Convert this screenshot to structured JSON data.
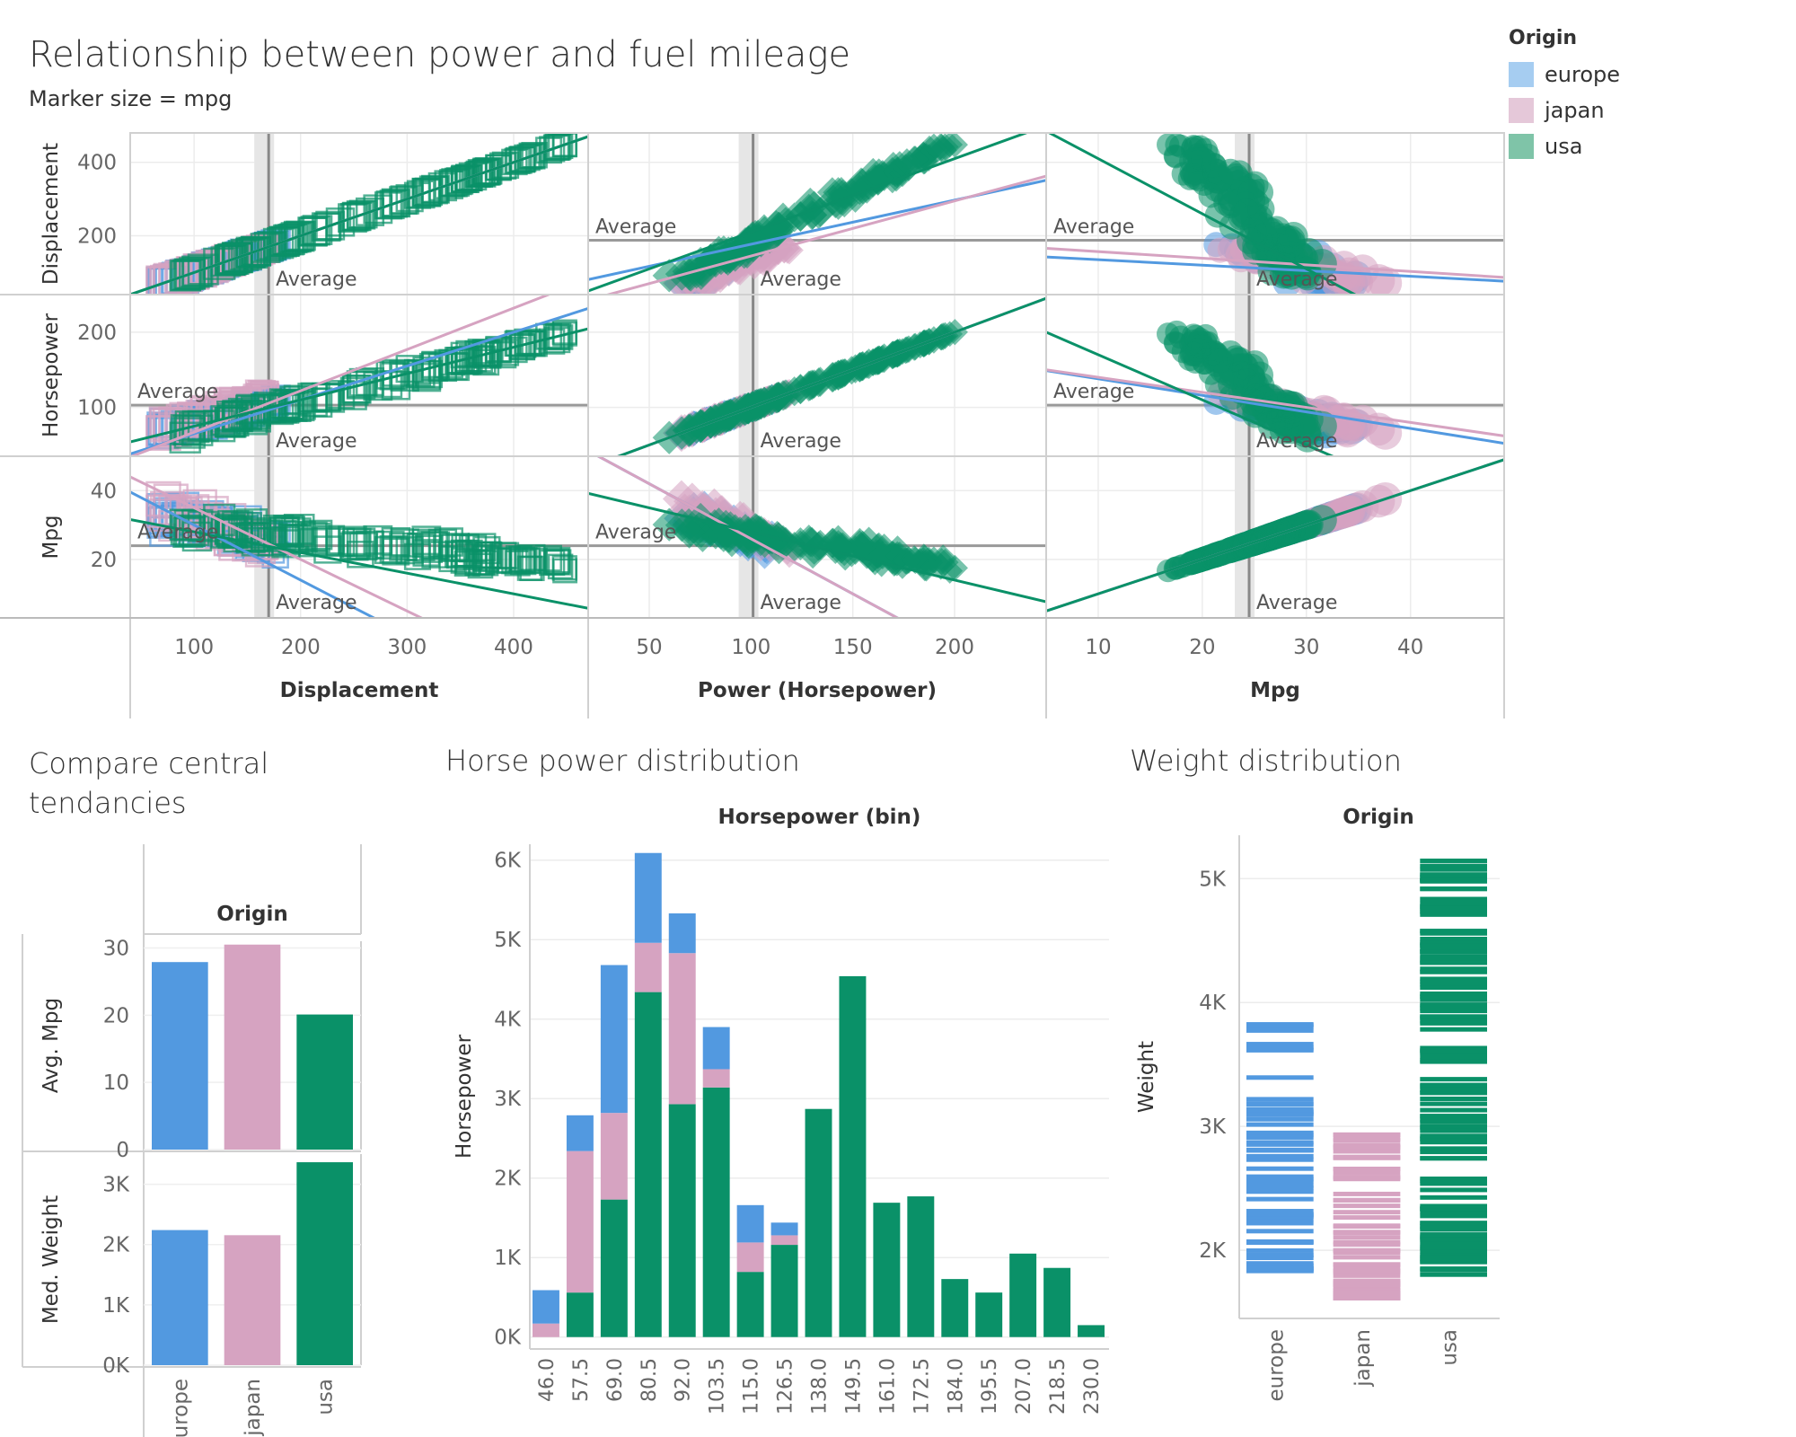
{
  "title": "Relationship between power and fuel mileage",
  "subtitle": "Marker size = mpg",
  "legend": {
    "title": "Origin",
    "items": [
      {
        "label": "europe",
        "color": "#a6cdf1"
      },
      {
        "label": "japan",
        "color": "#e5c8d9"
      },
      {
        "label": "usa",
        "color": "#7fc4a8"
      }
    ]
  },
  "colors": {
    "europe": "#5299e0",
    "japan": "#d6a3c1",
    "usa": "#0a9168"
  },
  "reference_line_label": "Average",
  "section_titles": {
    "central": "Compare central tendancies",
    "hp": "Horse power distribution",
    "weight": "Weight distribution"
  },
  "chart_data": [
    {
      "type": "scatter",
      "title": "Relationship between power and fuel mileage",
      "subtitle": "Marker size = mpg",
      "columns": [
        {
          "name": "Displacement",
          "domain": [
            40,
            470
          ],
          "ticks": [
            100,
            200,
            300,
            400
          ],
          "average": 170
        },
        {
          "name": "Power (Horsepower)",
          "domain": [
            20,
            245
          ],
          "ticks": [
            50,
            100,
            150,
            200
          ],
          "average": 101
        },
        {
          "name": "Mpg",
          "domain": [
            5,
            49
          ],
          "ticks": [
            10,
            20,
            30,
            40
          ],
          "average": 24.5
        }
      ],
      "rows": [
        {
          "name": "Displacement",
          "domain": [
            40,
            480
          ],
          "ticks": [
            200,
            400
          ],
          "average": 188
        },
        {
          "name": "Horsepower",
          "domain": [
            35,
            250
          ],
          "ticks": [
            100,
            200
          ],
          "average": 103
        },
        {
          "name": "Mpg",
          "domain": [
            3,
            50
          ],
          "ticks": [
            20,
            40
          ],
          "average": 24
        }
      ],
      "series": [
        "europe",
        "japan",
        "usa"
      ],
      "trend_lines": {
        "Displacement|Displacement": {
          "europe": [
            1,
            0
          ],
          "japan": [
            1,
            0
          ],
          "usa": [
            1,
            0
          ]
        },
        "Displacement|Power (Horsepower)": {
          "europe": [
            1.2,
            57
          ],
          "japan": [
            1.5,
            -5
          ],
          "usa": [
            2.0,
            10
          ]
        },
        "Displacement|Mpg": {
          "europe": [
            -1.5,
            150
          ],
          "japan": [
            -1.8,
            175
          ],
          "usa": [
            -15,
            560
          ]
        },
        "Horsepower|Displacement": {
          "europe": [
            0.45,
            20
          ],
          "japan": [
            0.55,
            12
          ],
          "usa": [
            0.35,
            40
          ]
        },
        "Horsepower|Power (Horsepower)": {
          "europe": [
            1,
            0
          ],
          "japan": [
            1,
            0
          ],
          "usa": [
            1,
            0
          ]
        },
        "Horsepower|Mpg": {
          "europe": [
            -2.2,
            160
          ],
          "japan": [
            -2.0,
            160
          ],
          "usa": [
            -6,
            230
          ]
        },
        "Mpg|Displacement": {
          "europe": [
            -0.16,
            46
          ],
          "japan": [
            -0.15,
            50
          ],
          "usa": [
            -0.06,
            34
          ]
        },
        "Mpg|Power (Horsepower)": {
          "europe": [
            -0.32,
            58
          ],
          "japan": [
            -0.32,
            58
          ],
          "usa": [
            -0.14,
            42
          ]
        },
        "Mpg|Mpg": {
          "europe": [
            1,
            0
          ],
          "japan": [
            1,
            0
          ],
          "usa": [
            1,
            0
          ]
        }
      }
    },
    {
      "type": "bar",
      "title": "Compare central tendancies",
      "column_header": "Origin",
      "categories": [
        "europe",
        "japan",
        "usa"
      ],
      "panels": [
        {
          "ylabel": "Avg. Mpg",
          "values": [
            27.9,
            30.5,
            20.1
          ],
          "ylim": [
            0,
            31
          ],
          "ticks": [
            0,
            10,
            20,
            30
          ],
          "tick_labels": [
            "0",
            "10",
            "20",
            "30"
          ]
        },
        {
          "ylabel": "Med. Weight",
          "values": [
            2240,
            2155,
            3365
          ],
          "ylim": [
            0,
            3500
          ],
          "ticks": [
            0,
            1000,
            2000,
            3000
          ],
          "tick_labels": [
            "0K",
            "1K",
            "2K",
            "3K"
          ]
        }
      ]
    },
    {
      "type": "bar",
      "stacked": true,
      "title": "Horse power distribution",
      "xlabel": "Horsepower (bin)",
      "ylabel": "Horsepower",
      "categories": [
        "46.0",
        "57.5",
        "69.0",
        "80.5",
        "92.0",
        "103.5",
        "115.0",
        "126.5",
        "138.0",
        "149.5",
        "161.0",
        "172.5",
        "184.0",
        "195.5",
        "207.0",
        "218.5",
        "230.0"
      ],
      "series": [
        {
          "name": "usa",
          "values": [
            0,
            560,
            1730,
            4340,
            2930,
            3140,
            820,
            1160,
            2870,
            4540,
            1690,
            1770,
            730,
            560,
            1050,
            870,
            150
          ]
        },
        {
          "name": "japan",
          "values": [
            170,
            1780,
            1090,
            620,
            1900,
            230,
            370,
            120,
            0,
            0,
            0,
            0,
            0,
            0,
            0,
            0,
            0
          ]
        },
        {
          "name": "europe",
          "values": [
            420,
            450,
            1860,
            1130,
            500,
            530,
            470,
            160,
            0,
            0,
            0,
            0,
            0,
            0,
            0,
            0,
            0
          ]
        }
      ],
      "ylim": [
        -150,
        6200
      ],
      "ticks": [
        0,
        1000,
        2000,
        3000,
        4000,
        5000,
        6000
      ],
      "tick_labels": [
        "0K",
        "1K",
        "2K",
        "3K",
        "4K",
        "5K",
        "6K"
      ]
    },
    {
      "type": "strip",
      "title": "Weight distribution",
      "column_header": "Origin",
      "ylabel": "Weight",
      "categories": [
        "europe",
        "japan",
        "usa"
      ],
      "ylim": [
        1450,
        5350
      ],
      "ticks": [
        2000,
        3000,
        4000,
        5000
      ],
      "tick_labels": [
        "2K",
        "3K",
        "4K",
        "5K"
      ],
      "ranges": {
        "europe": [
          1830,
          3820
        ],
        "japan": [
          1610,
          2930
        ],
        "usa": [
          1800,
          5140
        ]
      }
    }
  ]
}
